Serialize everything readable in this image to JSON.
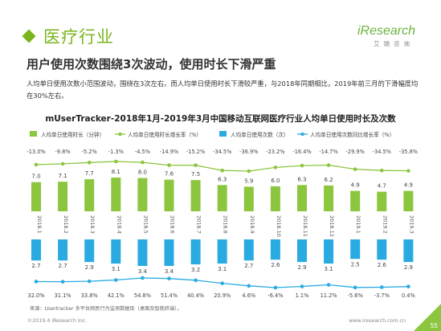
{
  "header": {
    "section_title": "医疗行业",
    "logo_brand": "iResearch",
    "logo_sub": "艾瑞咨询",
    "headline": "用户使用次数围绕3次波动，使用时长下滑严重",
    "description": "人均单日使用次数小范围波动，围绕在3次左右。而人均单日使用时长下滑较严重，与2018年同期相比，2019年前三月的下滑幅度均在30%左右。"
  },
  "colors": {
    "accent": "#7ab51d",
    "duration": "#8cc63f",
    "frequency": "#29abe2"
  },
  "chart_data": {
    "type": "bar",
    "title": "mUserTracker-2018年1月-2019年3月中国移动互联网医疗行业人均单日使用时长及次数",
    "categories": [
      "2018.1",
      "2018.2",
      "2018.3",
      "2018.4",
      "2018.5",
      "2018.6",
      "2018.7",
      "2018.8",
      "2018.9",
      "2018.10",
      "2018.11",
      "2018.12",
      "2019.1",
      "2019.2",
      "2019.3"
    ],
    "series": [
      {
        "name": "人均单日使用时长（分钟）",
        "type": "bar",
        "values": [
          7.0,
          7.1,
          7.7,
          8.1,
          8.0,
          7.6,
          7.5,
          6.3,
          5.9,
          6.0,
          6.3,
          6.2,
          4.9,
          4.7,
          4.9
        ],
        "labels": [
          "7.0",
          "7.1",
          "7.7",
          "8.1",
          "8.0",
          "7.6",
          "7.5",
          "6.3",
          "5.9",
          "6.0",
          "6.3",
          "6.2",
          "4.9",
          "4.7",
          "4.9"
        ]
      },
      {
        "name": "人均单日使用时长增长率（%）",
        "type": "line",
        "values": [
          -13.0,
          -9.8,
          -5.2,
          -1.3,
          -4.5,
          -14.9,
          -15.2,
          -34.5,
          -36.9,
          -23.2,
          -16.4,
          -14.7,
          -29.9,
          -34.5,
          -35.8
        ],
        "labels": [
          "-13.0%",
          "-9.8%",
          "-5.2%",
          "-1.3%",
          "-4.5%",
          "-14.9%",
          "-15.2%",
          "-34.5%",
          "-36.9%",
          "-23.2%",
          "-16.4%",
          "-14.7%",
          "-29.9%",
          "-34.5%",
          "-35.8%"
        ]
      },
      {
        "name": "人均单日使用次数（次）",
        "type": "bar",
        "values": [
          2.7,
          2.7,
          2.9,
          3.1,
          3.4,
          3.4,
          3.2,
          3.1,
          2.7,
          2.6,
          2.9,
          3.1,
          2.5,
          2.6,
          2.9
        ],
        "labels": [
          "2.7",
          "2.7",
          "2.9",
          "3.1",
          "3.4",
          "3.4",
          "3.2",
          "3.1",
          "2.7",
          "2.6",
          "2.9",
          "3.1",
          "2.5",
          "2.6",
          "2.9"
        ]
      },
      {
        "name": "人均单日使用次数同比增长率（%）",
        "type": "line",
        "values": [
          32.0,
          31.1,
          33.8,
          42.1,
          54.8,
          51.4,
          40.4,
          20.9,
          4.6,
          -6.4,
          1.1,
          11.2,
          -5.6,
          -3.7,
          0.4
        ],
        "labels": [
          "32.0%",
          "31.1%",
          "33.8%",
          "42.1%",
          "54.8%",
          "51.4%",
          "40.4%",
          "20.9%",
          "4.6%",
          "-6.4%",
          "1.1%",
          "11.2%",
          "-5.6%",
          "-3.7%",
          "0.4%"
        ]
      }
    ]
  },
  "footer": {
    "source": "来源：Usertracker 多平台网民行为监测数据库（桌面及智能终端）。",
    "copyright": "©2019.4 iResearch Inc.",
    "website": "www.iresearch.com.cn",
    "page_number": "55"
  }
}
